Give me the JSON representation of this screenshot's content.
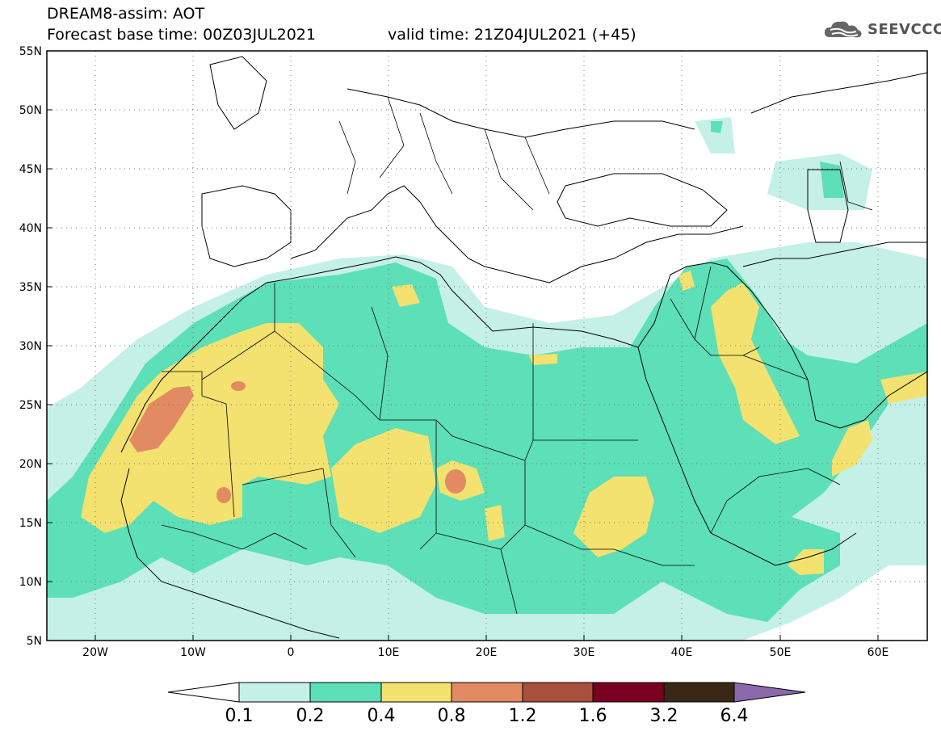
{
  "header": {
    "title_line_1": "DREAM8-assim: AOT",
    "title_line_2": "Forecast base time: 00Z03JUL2021",
    "valid_time": "valid time: 21Z04JUL2021 (+45)"
  },
  "logo": {
    "text": "SEEVCCC",
    "icon": "cloud-logo-icon"
  },
  "map": {
    "lat_labels": [
      "55N",
      "50N",
      "45N",
      "40N",
      "35N",
      "30N",
      "25N",
      "20N",
      "15N",
      "10N",
      "5N"
    ],
    "lon_labels": [
      "20W",
      "10W",
      "0",
      "10E",
      "20E",
      "30E",
      "40E",
      "50E",
      "60E"
    ],
    "lat_range": [
      5,
      55
    ],
    "lon_range": [
      -25,
      65
    ],
    "grid": "dotted"
  },
  "colorbar": {
    "labels": [
      "0.1",
      "0.2",
      "0.4",
      "0.8",
      "1.2",
      "1.6",
      "3.2",
      "6.4"
    ],
    "colors": [
      "#ffffff",
      "#c4f0e8",
      "#5ddfb8",
      "#f3e270",
      "#e28a62",
      "#a84f3e",
      "#7a0022",
      "#3a2716",
      "#8a6aaa"
    ]
  },
  "colors": {
    "level_1": "#c4f0e8",
    "level_2": "#5ddfb8",
    "level_3": "#f3e270",
    "level_4": "#e28a62"
  }
}
